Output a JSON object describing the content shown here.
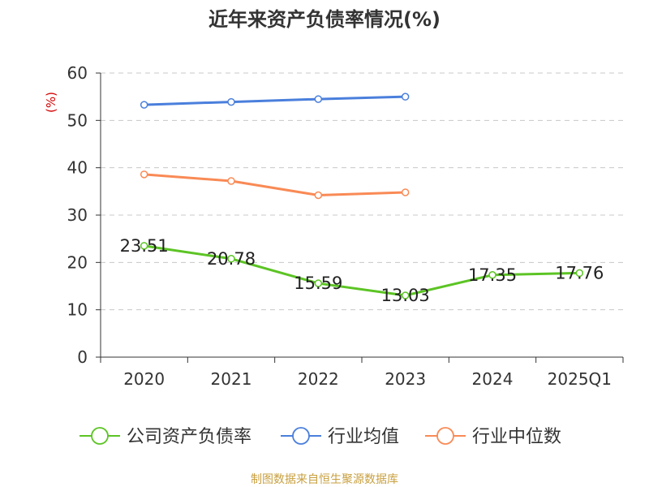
{
  "chart_data": {
    "type": "line",
    "title": "近年来资产负债率情况(%)",
    "unit_label": "(%)",
    "categories": [
      "2020",
      "2021",
      "2022",
      "2023",
      "2024",
      "2025Q1"
    ],
    "ylim": [
      0,
      60
    ],
    "yticks": [
      0,
      10,
      20,
      30,
      40,
      50,
      60
    ],
    "grid": true,
    "legend_position": "bottom",
    "series": [
      {
        "name": "公司资产负债率",
        "color": "#5cc424",
        "values": [
          23.51,
          20.78,
          15.59,
          13.03,
          17.35,
          17.76
        ],
        "data_labels": [
          "23.51",
          "20.78",
          "15.59",
          "13.03",
          "17.35",
          "17.76"
        ],
        "show_labels": true
      },
      {
        "name": "行业均值",
        "color": "#4a7fdc",
        "values": [
          53.3,
          53.9,
          54.5,
          55.0,
          null,
          null
        ],
        "show_labels": false
      },
      {
        "name": "行业中位数",
        "color": "#f98a55",
        "values": [
          38.6,
          37.2,
          34.2,
          34.8,
          null,
          null
        ],
        "show_labels": false
      }
    ],
    "source": "制图数据来自恒生聚源数据库"
  }
}
